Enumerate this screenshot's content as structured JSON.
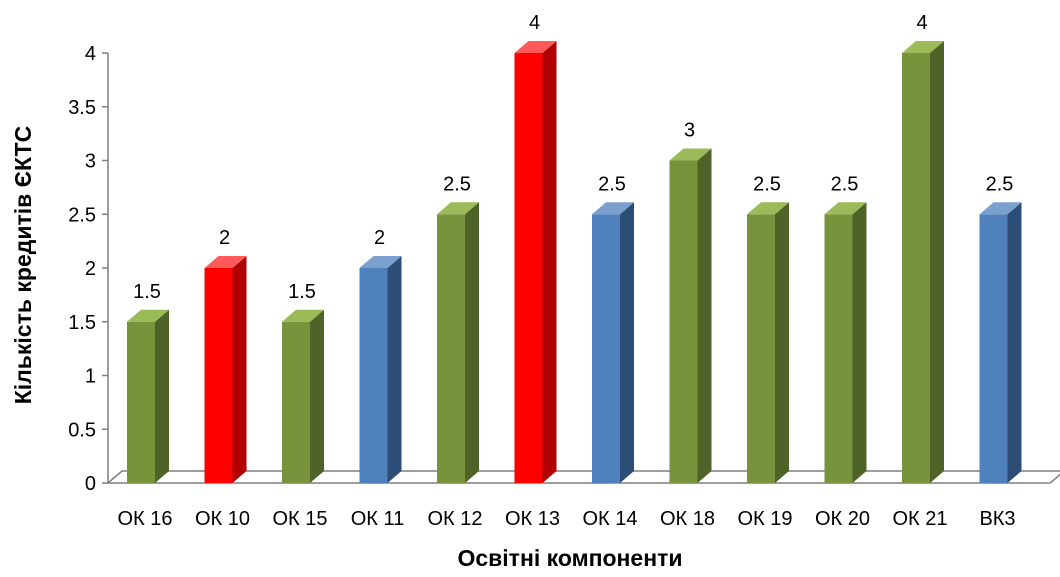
{
  "chart_data": {
    "type": "bar",
    "style": "3d-column",
    "xlabel": "Освітні компоненти",
    "ylabel": "Кількість кредитів ЄКТС",
    "ylim": [
      0,
      4
    ],
    "y_ticks": [
      "0",
      "0.5",
      "1",
      "1.5",
      "2",
      "2.5",
      "3",
      "3.5",
      "4"
    ],
    "grid": false,
    "legend": "none",
    "categories": [
      "ОК 16",
      "ОК 10",
      "ОК 15",
      "ОК 11",
      "ОК 12",
      "ОК 13",
      "ОК 14",
      "ОК 18",
      "ОК 19",
      "ОК 20",
      "ОК 21",
      "ВК3"
    ],
    "values": [
      1.5,
      2,
      1.5,
      2,
      2.5,
      4,
      2.5,
      3,
      2.5,
      2.5,
      4,
      2.5
    ],
    "data_labels": [
      "1.5",
      "2",
      "1.5",
      "2",
      "2.5",
      "4",
      "2.5",
      "3",
      "2.5",
      "2.5",
      "4",
      "2.5"
    ],
    "bar_color_keys": [
      "green",
      "red",
      "green",
      "blue",
      "green",
      "red",
      "blue",
      "green",
      "green",
      "green",
      "green",
      "blue"
    ],
    "colors": {
      "green": {
        "front": "#77933c",
        "side": "#4f6228",
        "top": "#9bbb59"
      },
      "red": {
        "front": "#ff0000",
        "side": "#b00000",
        "top": "#ff5a5a"
      },
      "blue": {
        "front": "#4f81bd",
        "side": "#2c4d75",
        "top": "#7ba0cd"
      },
      "axis": "#7f7f7f"
    }
  }
}
